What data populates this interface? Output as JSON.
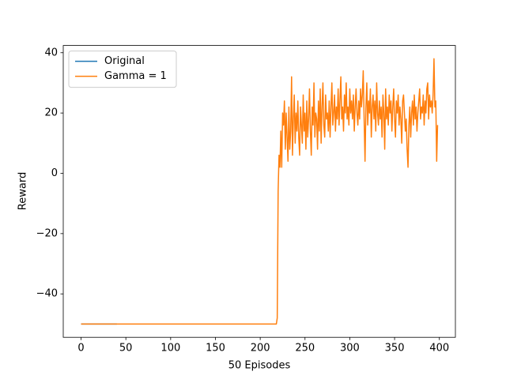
{
  "chart_data": {
    "type": "line",
    "xlabel": "50 Episodes",
    "ylabel": "Reward",
    "xlim": [
      -19.9,
      417.9
    ],
    "ylim": [
      -54.4,
      42.4
    ],
    "xticks": [
      0,
      50,
      100,
      150,
      200,
      250,
      300,
      350,
      400
    ],
    "yticks": [
      {
        "value": -40,
        "label": "−40"
      },
      {
        "value": -20,
        "label": "−20"
      },
      0,
      20,
      40
    ],
    "legend": "upper left",
    "series": [
      {
        "name": "Original",
        "color": "#1f77b4",
        "x": [
          0,
          1,
          2,
          3,
          4,
          5,
          6,
          7,
          8,
          9,
          10,
          11,
          12,
          13,
          14,
          15,
          16,
          17,
          18,
          19,
          20,
          21,
          22,
          23,
          24,
          25,
          26,
          27,
          28,
          29,
          30,
          31,
          32,
          33,
          34,
          35,
          36,
          37,
          38,
          39,
          40
        ],
        "values": [
          -50,
          -50,
          -50,
          -50,
          -50,
          -50,
          -50,
          -50,
          -50,
          -50,
          -50,
          -50,
          -50,
          -50,
          -50,
          -50,
          -50,
          -50,
          -50,
          -50,
          -50,
          -50,
          -50,
          -50,
          -50,
          -50,
          -50,
          -50,
          -50,
          -50,
          -50,
          -50,
          -50,
          -50,
          -50,
          -50,
          -50,
          -50,
          -50,
          -50,
          -50
        ]
      },
      {
        "name": "Gamma = 1",
        "color": "#ff7f0e",
        "x": [
          0,
          1,
          2,
          3,
          4,
          5,
          6,
          7,
          8,
          9,
          10,
          11,
          12,
          13,
          14,
          15,
          16,
          17,
          18,
          19,
          20,
          21,
          22,
          23,
          24,
          25,
          26,
          27,
          28,
          29,
          30,
          31,
          32,
          33,
          34,
          35,
          36,
          37,
          38,
          39,
          40,
          41,
          42,
          43,
          44,
          45,
          46,
          47,
          48,
          49,
          50,
          51,
          52,
          53,
          54,
          55,
          56,
          57,
          58,
          59,
          60,
          61,
          62,
          63,
          64,
          65,
          66,
          67,
          68,
          69,
          70,
          71,
          72,
          73,
          74,
          75,
          76,
          77,
          78,
          79,
          80,
          81,
          82,
          83,
          84,
          85,
          86,
          87,
          88,
          89,
          90,
          91,
          92,
          93,
          94,
          95,
          96,
          97,
          98,
          99,
          100,
          101,
          102,
          103,
          104,
          105,
          106,
          107,
          108,
          109,
          110,
          111,
          112,
          113,
          114,
          115,
          116,
          117,
          118,
          119,
          120,
          121,
          122,
          123,
          124,
          125,
          126,
          127,
          128,
          129,
          130,
          131,
          132,
          133,
          134,
          135,
          136,
          137,
          138,
          139,
          140,
          141,
          142,
          143,
          144,
          145,
          146,
          147,
          148,
          149,
          150,
          151,
          152,
          153,
          154,
          155,
          156,
          157,
          158,
          159,
          160,
          161,
          162,
          163,
          164,
          165,
          166,
          167,
          168,
          169,
          170,
          171,
          172,
          173,
          174,
          175,
          176,
          177,
          178,
          179,
          180,
          181,
          182,
          183,
          184,
          185,
          186,
          187,
          188,
          189,
          190,
          191,
          192,
          193,
          194,
          195,
          196,
          197,
          198,
          199,
          200,
          201,
          202,
          203,
          204,
          205,
          206,
          207,
          208,
          209,
          210,
          211,
          212,
          213,
          214,
          215,
          216,
          217,
          218,
          219,
          220,
          221,
          222,
          223,
          224,
          225,
          226,
          227,
          228,
          229,
          230,
          231,
          232,
          233,
          234,
          235,
          236,
          237,
          238,
          239,
          240,
          241,
          242,
          243,
          244,
          245,
          246,
          247,
          248,
          249,
          250,
          251,
          252,
          253,
          254,
          255,
          256,
          257,
          258,
          259,
          260,
          261,
          262,
          263,
          264,
          265,
          266,
          267,
          268,
          269,
          270,
          271,
          272,
          273,
          274,
          275,
          276,
          277,
          278,
          279,
          280,
          281,
          282,
          283,
          284,
          285,
          286,
          287,
          288,
          289,
          290,
          291,
          292,
          293,
          294,
          295,
          296,
          297,
          298,
          299,
          300,
          301,
          302,
          303,
          304,
          305,
          306,
          307,
          308,
          309,
          310,
          311,
          312,
          313,
          314,
          315,
          316,
          317,
          318,
          319,
          320,
          321,
          322,
          323,
          324,
          325,
          326,
          327,
          328,
          329,
          330,
          331,
          332,
          333,
          334,
          335,
          336,
          337,
          338,
          339,
          340,
          341,
          342,
          343,
          344,
          345,
          346,
          347,
          348,
          349,
          350,
          351,
          352,
          353,
          354,
          355,
          356,
          357,
          358,
          359,
          360,
          361,
          362,
          363,
          364,
          365,
          366,
          367,
          368,
          369,
          370,
          371,
          372,
          373,
          374,
          375,
          376,
          377,
          378,
          379,
          380,
          381,
          382,
          383,
          384,
          385,
          386,
          387,
          388,
          389,
          390,
          391,
          392,
          393,
          394,
          395,
          396,
          397,
          398
        ],
        "values": [
          -50,
          -50,
          -50,
          -50,
          -50,
          -50,
          -50,
          -50,
          -50,
          -50,
          -50,
          -50,
          -50,
          -50,
          -50,
          -50,
          -50,
          -50,
          -50,
          -50,
          -50,
          -50,
          -50,
          -50,
          -50,
          -50,
          -50,
          -50,
          -50,
          -50,
          -50,
          -50,
          -50,
          -50,
          -50,
          -50,
          -50,
          -50,
          -50,
          -50,
          -50,
          -50,
          -50,
          -50,
          -50,
          -50,
          -50,
          -50,
          -50,
          -50,
          -50,
          -50,
          -50,
          -50,
          -50,
          -50,
          -50,
          -50,
          -50,
          -50,
          -50,
          -50,
          -50,
          -50,
          -50,
          -50,
          -50,
          -50,
          -50,
          -50,
          -50,
          -50,
          -50,
          -50,
          -50,
          -50,
          -50,
          -50,
          -50,
          -50,
          -50,
          -50,
          -50,
          -50,
          -50,
          -50,
          -50,
          -50,
          -50,
          -50,
          -50,
          -50,
          -50,
          -50,
          -50,
          -50,
          -50,
          -50,
          -50,
          -50,
          -50,
          -50,
          -50,
          -50,
          -50,
          -50,
          -50,
          -50,
          -50,
          -50,
          -50,
          -50,
          -50,
          -50,
          -50,
          -50,
          -50,
          -50,
          -50,
          -50,
          -50,
          -50,
          -50,
          -50,
          -50,
          -50,
          -50,
          -50,
          -50,
          -50,
          -50,
          -50,
          -50,
          -50,
          -50,
          -50,
          -50,
          -50,
          -50,
          -50,
          -50,
          -50,
          -50,
          -50,
          -50,
          -50,
          -50,
          -50,
          -50,
          -50,
          -50,
          -50,
          -50,
          -50,
          -50,
          -50,
          -50,
          -50,
          -50,
          -50,
          -50,
          -50,
          -50,
          -50,
          -50,
          -50,
          -50,
          -50,
          -50,
          -50,
          -50,
          -50,
          -50,
          -50,
          -50,
          -50,
          -50,
          -50,
          -50,
          -50,
          -50,
          -50,
          -50,
          -50,
          -50,
          -50,
          -50,
          -50,
          -50,
          -50,
          -50,
          -50,
          -50,
          -50,
          -50,
          -50,
          -50,
          -50,
          -50,
          -50,
          -50,
          -50,
          -50,
          -50,
          -50,
          -50,
          -50,
          -50,
          -50,
          -50,
          -50,
          -50,
          -50,
          -50,
          -50,
          -50,
          -50,
          -50,
          -50,
          -48,
          -6,
          6,
          2,
          14,
          2,
          20,
          16,
          24,
          8,
          20,
          12,
          4,
          22,
          8,
          14,
          32,
          6,
          18,
          26,
          10,
          20,
          14,
          24,
          12,
          6,
          22,
          16,
          10,
          26,
          14,
          20,
          8,
          24,
          12,
          18,
          28,
          14,
          6,
          22,
          16,
          30,
          12,
          20,
          18,
          8,
          24,
          14,
          28,
          10,
          22,
          30,
          16,
          12,
          26,
          18,
          20,
          14,
          24,
          12,
          22,
          30,
          16,
          20,
          26,
          14,
          22,
          18,
          28,
          16,
          24,
          32,
          18,
          22,
          14,
          26,
          20,
          30,
          18,
          22,
          16,
          28,
          20,
          24,
          18,
          26,
          14,
          22,
          28,
          20,
          16,
          24,
          18,
          28,
          22,
          26,
          34,
          18,
          4,
          22,
          30,
          16,
          24,
          20,
          28,
          12,
          22,
          26,
          18,
          24,
          14,
          30,
          20,
          16,
          24,
          18,
          22,
          12,
          26,
          20,
          8,
          28,
          18,
          22,
          16,
          26,
          20,
          24,
          14,
          22,
          28,
          18,
          12,
          24,
          20,
          26,
          16,
          22,
          18,
          10,
          24,
          26,
          20,
          14,
          18,
          8,
          2,
          16,
          22,
          12,
          20,
          24,
          16,
          26,
          18,
          22,
          14,
          20,
          24,
          28,
          18,
          22,
          20,
          26,
          16,
          24,
          20,
          28,
          30,
          18,
          26,
          22,
          24,
          20,
          26,
          38,
          22,
          24,
          4,
          16
        ]
      }
    ]
  }
}
